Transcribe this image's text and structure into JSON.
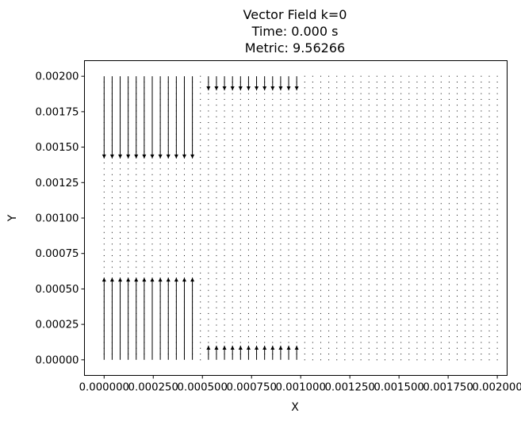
{
  "chart_data": {
    "type": "quiver",
    "title_lines": [
      "Vector Field k=0",
      "Time: 0.000 s",
      "Metric: 9.56266"
    ],
    "xlabel": "X",
    "ylabel": "Y",
    "xlim": [
      -0.0001,
      0.00205
    ],
    "ylim": [
      -0.00011,
      0.00211
    ],
    "x_ticks": [
      0.0,
      0.00025,
      0.0005,
      0.00075,
      0.001,
      0.00125,
      0.0015,
      0.00175,
      0.002
    ],
    "x_tick_labels": [
      "0.000000",
      "0.000250",
      "0.000500",
      "0.000750",
      "0.001000",
      "0.001250",
      "0.001500",
      "0.001750",
      "0.002000"
    ],
    "y_ticks": [
      0.0,
      0.00025,
      0.0005,
      0.00075,
      0.001,
      0.00125,
      0.0015,
      0.00175,
      0.002
    ],
    "y_tick_labels": [
      "0.00000",
      "0.00025",
      "0.00050",
      "0.00075",
      "0.00100",
      "0.00125",
      "0.00150",
      "0.00175",
      "0.00200"
    ],
    "grid": false,
    "arrow_color": "#000000",
    "grid_points": {
      "x_start": 0.0,
      "x_stop": 0.002,
      "nx": 50,
      "y_start": 0.0,
      "y_stop": 0.002,
      "ny": 50
    },
    "regions": [
      {
        "x_range": [
          0.0,
          0.00048
        ],
        "y_value": 0.002,
        "u": 0,
        "v": -0.00058
      },
      {
        "x_range": [
          0.0,
          0.00048
        ],
        "y_value": 0.0,
        "u": 0,
        "v": 0.00058
      },
      {
        "x_range": [
          0.0005,
          0.00099
        ],
        "y_value": 0.002,
        "u": 0,
        "v": -0.0001
      },
      {
        "x_range": [
          0.0005,
          0.00099
        ],
        "y_value": 0.0,
        "u": 0,
        "v": 0.0001
      }
    ]
  }
}
